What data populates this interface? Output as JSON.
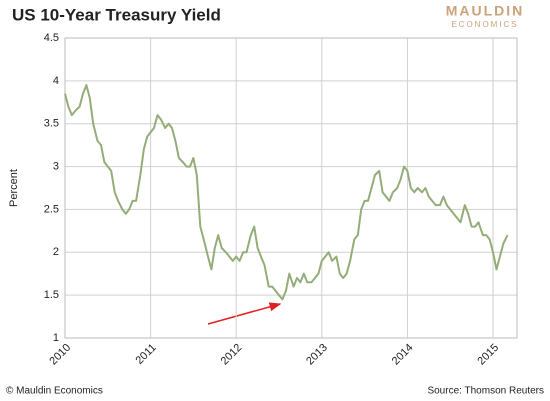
{
  "chart_data": {
    "type": "line",
    "title": "US 10-Year Treasury Yield",
    "logo": {
      "top": "MAULDIN",
      "bottom": "ECONOMICS"
    },
    "ylabel": "Percent",
    "footer_left": "© Mauldin Economics",
    "footer_right": "Source: Thomson Reuters",
    "color": "#94ad78",
    "grid": true,
    "xlim": [
      2010,
      2015.28
    ],
    "xticks": [
      2010,
      2011,
      2012,
      2013,
      2014,
      2015
    ],
    "ylim": [
      1,
      4.5
    ],
    "yticks": [
      1,
      1.5,
      2,
      2.5,
      3,
      3.5,
      4,
      4.5
    ],
    "x": [
      2010.0,
      2010.04,
      2010.08,
      2010.12,
      2010.17,
      2010.21,
      2010.25,
      2010.29,
      2010.33,
      2010.38,
      2010.42,
      2010.46,
      2010.5,
      2010.54,
      2010.58,
      2010.62,
      2010.67,
      2010.71,
      2010.75,
      2010.79,
      2010.83,
      2010.88,
      2010.92,
      2010.96,
      2011.0,
      2011.04,
      2011.08,
      2011.12,
      2011.17,
      2011.21,
      2011.25,
      2011.29,
      2011.33,
      2011.38,
      2011.42,
      2011.46,
      2011.5,
      2011.54,
      2011.58,
      2011.62,
      2011.67,
      2011.71,
      2011.75,
      2011.79,
      2011.83,
      2011.88,
      2011.92,
      2011.96,
      2012.0,
      2012.04,
      2012.08,
      2012.12,
      2012.17,
      2012.21,
      2012.25,
      2012.29,
      2012.33,
      2012.38,
      2012.42,
      2012.46,
      2012.5,
      2012.54,
      2012.58,
      2012.62,
      2012.67,
      2012.71,
      2012.75,
      2012.79,
      2012.83,
      2012.88,
      2012.92,
      2012.96,
      2013.0,
      2013.04,
      2013.08,
      2013.12,
      2013.17,
      2013.21,
      2013.25,
      2013.29,
      2013.33,
      2013.38,
      2013.42,
      2013.46,
      2013.5,
      2013.54,
      2013.58,
      2013.62,
      2013.67,
      2013.71,
      2013.75,
      2013.79,
      2013.83,
      2013.88,
      2013.92,
      2013.96,
      2014.0,
      2014.04,
      2014.08,
      2014.12,
      2014.17,
      2014.21,
      2014.25,
      2014.29,
      2014.33,
      2014.38,
      2014.42,
      2014.46,
      2014.5,
      2014.54,
      2014.58,
      2014.62,
      2014.67,
      2014.71,
      2014.75,
      2014.79,
      2014.83,
      2014.88,
      2014.92,
      2014.96,
      2015.0,
      2015.04,
      2015.08,
      2015.12,
      2015.17
    ],
    "values": [
      3.85,
      3.7,
      3.6,
      3.65,
      3.7,
      3.85,
      3.95,
      3.8,
      3.5,
      3.3,
      3.25,
      3.05,
      3.0,
      2.95,
      2.7,
      2.6,
      2.5,
      2.45,
      2.5,
      2.6,
      2.6,
      2.9,
      3.2,
      3.35,
      3.4,
      3.45,
      3.6,
      3.55,
      3.45,
      3.5,
      3.45,
      3.3,
      3.1,
      3.05,
      3.0,
      3.0,
      3.1,
      2.9,
      2.3,
      2.15,
      1.95,
      1.8,
      2.05,
      2.2,
      2.05,
      2.0,
      1.95,
      1.9,
      1.95,
      1.9,
      2.0,
      2.0,
      2.2,
      2.3,
      2.05,
      1.95,
      1.85,
      1.6,
      1.6,
      1.55,
      1.5,
      1.45,
      1.55,
      1.75,
      1.6,
      1.7,
      1.65,
      1.75,
      1.65,
      1.65,
      1.7,
      1.75,
      1.9,
      1.95,
      2.0,
      1.9,
      1.95,
      1.75,
      1.7,
      1.75,
      1.9,
      2.15,
      2.2,
      2.5,
      2.6,
      2.6,
      2.75,
      2.9,
      2.95,
      2.7,
      2.65,
      2.6,
      2.7,
      2.75,
      2.85,
      3.0,
      2.95,
      2.75,
      2.7,
      2.75,
      2.7,
      2.75,
      2.65,
      2.6,
      2.55,
      2.55,
      2.65,
      2.55,
      2.5,
      2.45,
      2.4,
      2.35,
      2.55,
      2.45,
      2.3,
      2.3,
      2.35,
      2.2,
      2.2,
      2.15,
      2.0,
      1.8,
      1.95,
      2.1,
      2.2
    ]
  }
}
